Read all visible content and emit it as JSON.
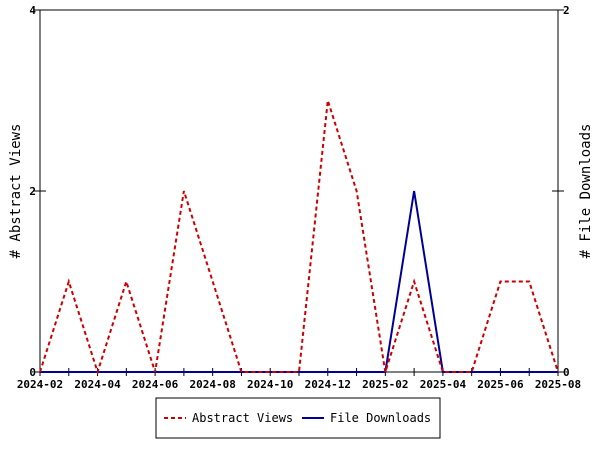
{
  "chart_data": {
    "type": "line",
    "x": [
      "2024-02",
      "2024-03",
      "2024-04",
      "2024-05",
      "2024-06",
      "2024-07",
      "2024-08",
      "2024-09",
      "2024-10",
      "2024-11",
      "2024-12",
      "2025-01",
      "2025-02",
      "2025-03",
      "2025-04",
      "2025-05",
      "2025-06",
      "2025-07",
      "2025-08"
    ],
    "series": [
      {
        "name": "Abstract Views",
        "axis": "left",
        "color": "#cc0000",
        "dash": "dashed",
        "values": [
          0,
          1,
          0,
          1,
          0,
          2,
          1,
          0,
          0,
          0,
          3,
          2,
          0,
          1,
          0,
          0,
          1,
          1,
          0
        ]
      },
      {
        "name": "File Downloads",
        "axis": "right",
        "color": "#000099",
        "dash": "solid",
        "values": [
          0,
          0,
          0,
          0,
          0,
          0,
          0,
          0,
          0,
          0,
          0,
          0,
          0,
          1,
          0,
          0,
          0,
          0,
          0
        ]
      }
    ],
    "x_tick_labels": [
      "2024-02",
      "2024-04",
      "2024-06",
      "2024-08",
      "2024-10",
      "2024-12",
      "2025-02",
      "2025-04",
      "2025-06",
      "2025-08"
    ],
    "ylabel": "# Abstract Views",
    "y2label": "# File Downloads",
    "ylim": [
      0,
      4
    ],
    "y2lim": [
      0,
      2
    ],
    "y_ticks": [
      "0",
      "2",
      "4"
    ],
    "y2_ticks": [
      "0",
      "1",
      "2"
    ],
    "y2_tick_labels": [
      "0",
      "2"
    ],
    "grid": false,
    "legend_position": "bottom"
  }
}
